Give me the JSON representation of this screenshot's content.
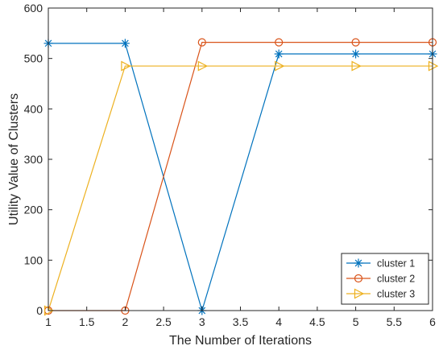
{
  "chart_data": {
    "type": "line",
    "xlabel": "The Number of Iterations",
    "ylabel": "Utility Value of Clusters",
    "xlim": [
      1,
      6
    ],
    "ylim": [
      0,
      600
    ],
    "xticks": [
      "1",
      "1.5",
      "2",
      "2.5",
      "3",
      "3.5",
      "4",
      "4.5",
      "5",
      "5.5",
      "6"
    ],
    "yticks": [
      "0",
      "100",
      "200",
      "300",
      "400",
      "500",
      "600"
    ],
    "grid": false,
    "legend_position": "bottom-right",
    "x": [
      1,
      2,
      3,
      4,
      5,
      6
    ],
    "series": [
      {
        "name": "cluster 1",
        "color": "#0072BD",
        "marker": "asterisk",
        "values": [
          530,
          530,
          0,
          509,
          509,
          509
        ]
      },
      {
        "name": "cluster 2",
        "color": "#D95319",
        "marker": "circle",
        "values": [
          0,
          0,
          532,
          532,
          532,
          532
        ]
      },
      {
        "name": "cluster 3",
        "color": "#EDB120",
        "marker": "triangle-right",
        "values": [
          0,
          485,
          485,
          485,
          485,
          485
        ]
      }
    ]
  }
}
